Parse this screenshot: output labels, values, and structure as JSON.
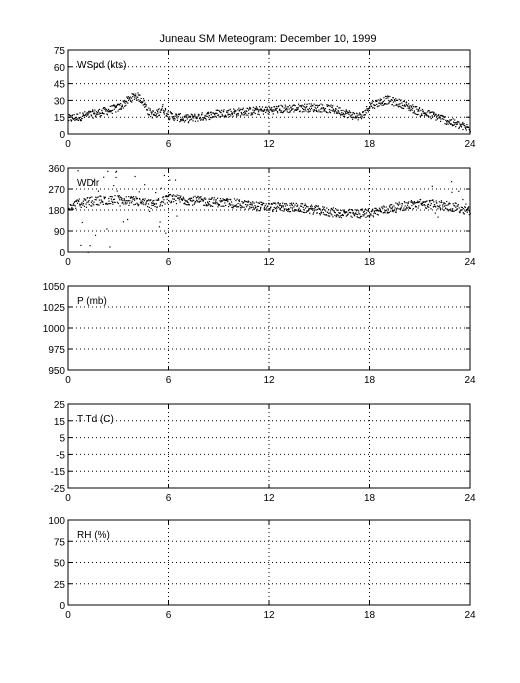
{
  "title": "Juneau SM Meteogram:   December 10, 1999",
  "chart_data": [
    {
      "type": "scatter",
      "label": "WSpd (kts)",
      "xlim": [
        0,
        24
      ],
      "ylim": [
        0,
        75
      ],
      "xticks": [
        0,
        6,
        12,
        18,
        24
      ],
      "yticks": [
        0,
        15,
        30,
        45,
        60,
        75
      ],
      "grid": true,
      "trend": [
        [
          0,
          14
        ],
        [
          1,
          17
        ],
        [
          2,
          20
        ],
        [
          3,
          24
        ],
        [
          3.5,
          30
        ],
        [
          4,
          35
        ],
        [
          4.4,
          31
        ],
        [
          4.8,
          20
        ],
        [
          5.2,
          17
        ],
        [
          5.6,
          24
        ],
        [
          6,
          17
        ],
        [
          7,
          14
        ],
        [
          8,
          16
        ],
        [
          9,
          19
        ],
        [
          10,
          20
        ],
        [
          11,
          21
        ],
        [
          12,
          22
        ],
        [
          13,
          23
        ],
        [
          14,
          24
        ],
        [
          15,
          24
        ],
        [
          16,
          22
        ],
        [
          17,
          17
        ],
        [
          17.5,
          16
        ],
        [
          18,
          26
        ],
        [
          19,
          31
        ],
        [
          20,
          27
        ],
        [
          21,
          20
        ],
        [
          22,
          16
        ],
        [
          23,
          10
        ],
        [
          24,
          5
        ]
      ]
    },
    {
      "type": "scatter",
      "label": "WDir",
      "xlim": [
        0,
        24
      ],
      "ylim": [
        0,
        360
      ],
      "xticks": [
        0,
        6,
        12,
        18,
        24
      ],
      "yticks": [
        0,
        90,
        180,
        270,
        360
      ],
      "grid": true,
      "trend": [
        [
          0,
          200
        ],
        [
          1,
          215
        ],
        [
          2,
          225
        ],
        [
          3,
          225
        ],
        [
          4,
          220
        ],
        [
          5,
          205
        ],
        [
          6,
          230
        ],
        [
          7,
          225
        ],
        [
          8,
          220
        ],
        [
          9,
          215
        ],
        [
          10,
          210
        ],
        [
          11,
          200
        ],
        [
          12,
          195
        ],
        [
          13,
          195
        ],
        [
          14,
          190
        ],
        [
          15,
          180
        ],
        [
          16,
          170
        ],
        [
          17,
          165
        ],
        [
          18,
          170
        ],
        [
          19,
          185
        ],
        [
          20,
          200
        ],
        [
          21,
          210
        ],
        [
          22,
          205
        ],
        [
          23,
          195
        ],
        [
          24,
          180
        ]
      ]
    },
    {
      "type": "scatter",
      "label": "P (mb)",
      "xlim": [
        0,
        24
      ],
      "ylim": [
        950,
        1050
      ],
      "xticks": [
        0,
        6,
        12,
        18,
        24
      ],
      "yticks": [
        950,
        975,
        1000,
        1025,
        1050
      ],
      "grid": true,
      "trend": []
    },
    {
      "type": "scatter",
      "label": "T Td (C)",
      "xlim": [
        0,
        24
      ],
      "ylim": [
        -25,
        25
      ],
      "xticks": [
        0,
        6,
        12,
        18,
        24
      ],
      "yticks": [
        -25,
        -15,
        -5,
        5,
        15,
        25
      ],
      "ytick_labels": [
        "-25",
        "-15",
        "-5",
        "5",
        "15",
        "25"
      ],
      "grid": true,
      "trend": []
    },
    {
      "type": "scatter",
      "label": "RH (%)",
      "xlim": [
        0,
        24
      ],
      "ylim": [
        0,
        100
      ],
      "xticks": [
        0,
        6,
        12,
        18,
        24
      ],
      "yticks": [
        0,
        25,
        50,
        75,
        100
      ],
      "grid": true,
      "trend": []
    }
  ]
}
